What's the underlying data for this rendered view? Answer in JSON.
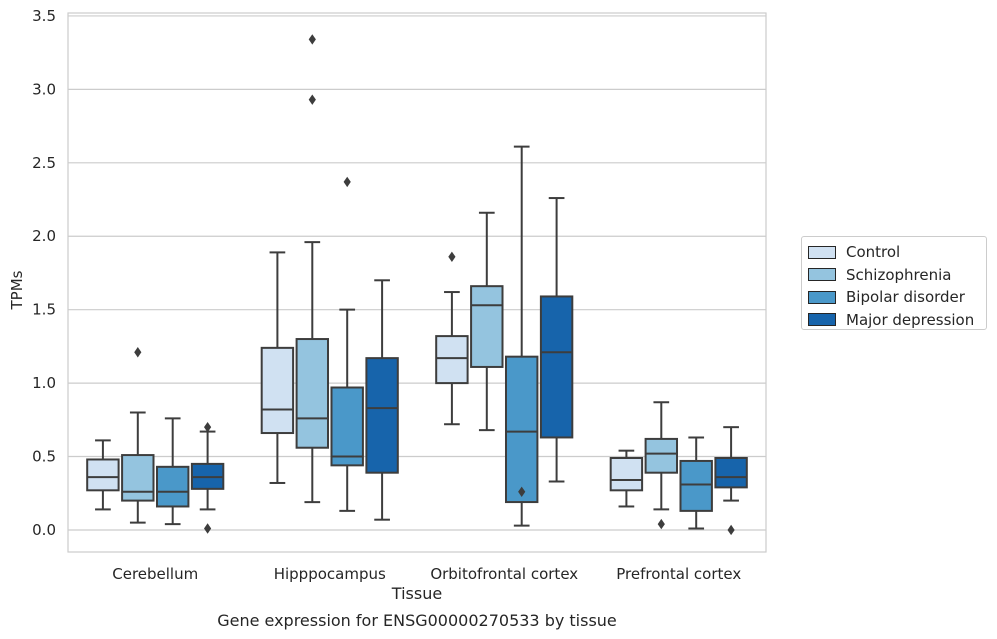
{
  "chart_data": {
    "type": "box",
    "title": "Gene expression for ENSG00000270533 by tissue",
    "xlabel": "Tissue",
    "ylabel": "TPMs",
    "ylim": [
      -0.15,
      3.52
    ],
    "yticks": [
      "0.0",
      "0.5",
      "1.0",
      "1.5",
      "2.0",
      "2.5",
      "3.0",
      "3.5"
    ],
    "grid": "horizontal",
    "legend_position": "right",
    "categories": [
      "Cerebellum",
      "Hipppocampus",
      "Orbitofrontal cortex",
      "Prefrontal cortex"
    ],
    "series": [
      {
        "name": "Control",
        "color": "#d0e1f2",
        "boxes": [
          {
            "whisker_low": 0.14,
            "q1": 0.27,
            "median": 0.36,
            "q3": 0.48,
            "whisker_high": 0.61,
            "outliers": []
          },
          {
            "whisker_low": 0.32,
            "q1": 0.66,
            "median": 0.82,
            "q3": 1.24,
            "whisker_high": 1.89,
            "outliers": []
          },
          {
            "whisker_low": 0.72,
            "q1": 1.0,
            "median": 1.17,
            "q3": 1.32,
            "whisker_high": 1.62,
            "outliers": [
              1.86
            ]
          },
          {
            "whisker_low": 0.16,
            "q1": 0.27,
            "median": 0.34,
            "q3": 0.49,
            "whisker_high": 0.54,
            "outliers": []
          }
        ]
      },
      {
        "name": "Schizophrenia",
        "color": "#94c4df",
        "boxes": [
          {
            "whisker_low": 0.05,
            "q1": 0.2,
            "median": 0.26,
            "q3": 0.51,
            "whisker_high": 0.8,
            "outliers": [
              1.21
            ]
          },
          {
            "whisker_low": 0.19,
            "q1": 0.56,
            "median": 0.76,
            "q3": 1.3,
            "whisker_high": 1.96,
            "outliers": [
              2.93,
              3.34
            ]
          },
          {
            "whisker_low": 0.68,
            "q1": 1.11,
            "median": 1.53,
            "q3": 1.66,
            "whisker_high": 2.16,
            "outliers": []
          },
          {
            "whisker_low": 0.14,
            "q1": 0.39,
            "median": 0.52,
            "q3": 0.62,
            "whisker_high": 0.87,
            "outliers": [
              0.04
            ]
          }
        ]
      },
      {
        "name": "Bipolar disorder",
        "color": "#4a98c9",
        "boxes": [
          {
            "whisker_low": 0.04,
            "q1": 0.16,
            "median": 0.26,
            "q3": 0.43,
            "whisker_high": 0.76,
            "outliers": []
          },
          {
            "whisker_low": 0.13,
            "q1": 0.44,
            "median": 0.5,
            "q3": 0.97,
            "whisker_high": 1.5,
            "outliers": [
              2.37
            ]
          },
          {
            "whisker_low": 0.03,
            "q1": 0.19,
            "median": 0.67,
            "q3": 1.18,
            "whisker_high": 2.61,
            "outliers": [
              0.26
            ]
          },
          {
            "whisker_low": 0.01,
            "q1": 0.13,
            "median": 0.31,
            "q3": 0.47,
            "whisker_high": 0.63,
            "outliers": []
          }
        ]
      },
      {
        "name": "Major depression",
        "color": "#1764ab",
        "boxes": [
          {
            "whisker_low": 0.14,
            "q1": 0.28,
            "median": 0.36,
            "q3": 0.45,
            "whisker_high": 0.67,
            "outliers": [
              0.01,
              0.7
            ]
          },
          {
            "whisker_low": 0.07,
            "q1": 0.39,
            "median": 0.83,
            "q3": 1.17,
            "whisker_high": 1.7,
            "outliers": []
          },
          {
            "whisker_low": 0.33,
            "q1": 0.63,
            "median": 1.21,
            "q3": 1.59,
            "whisker_high": 2.26,
            "outliers": []
          },
          {
            "whisker_low": 0.2,
            "q1": 0.29,
            "median": 0.36,
            "q3": 0.49,
            "whisker_high": 0.7,
            "outliers": [
              0.0
            ]
          }
        ]
      }
    ]
  }
}
